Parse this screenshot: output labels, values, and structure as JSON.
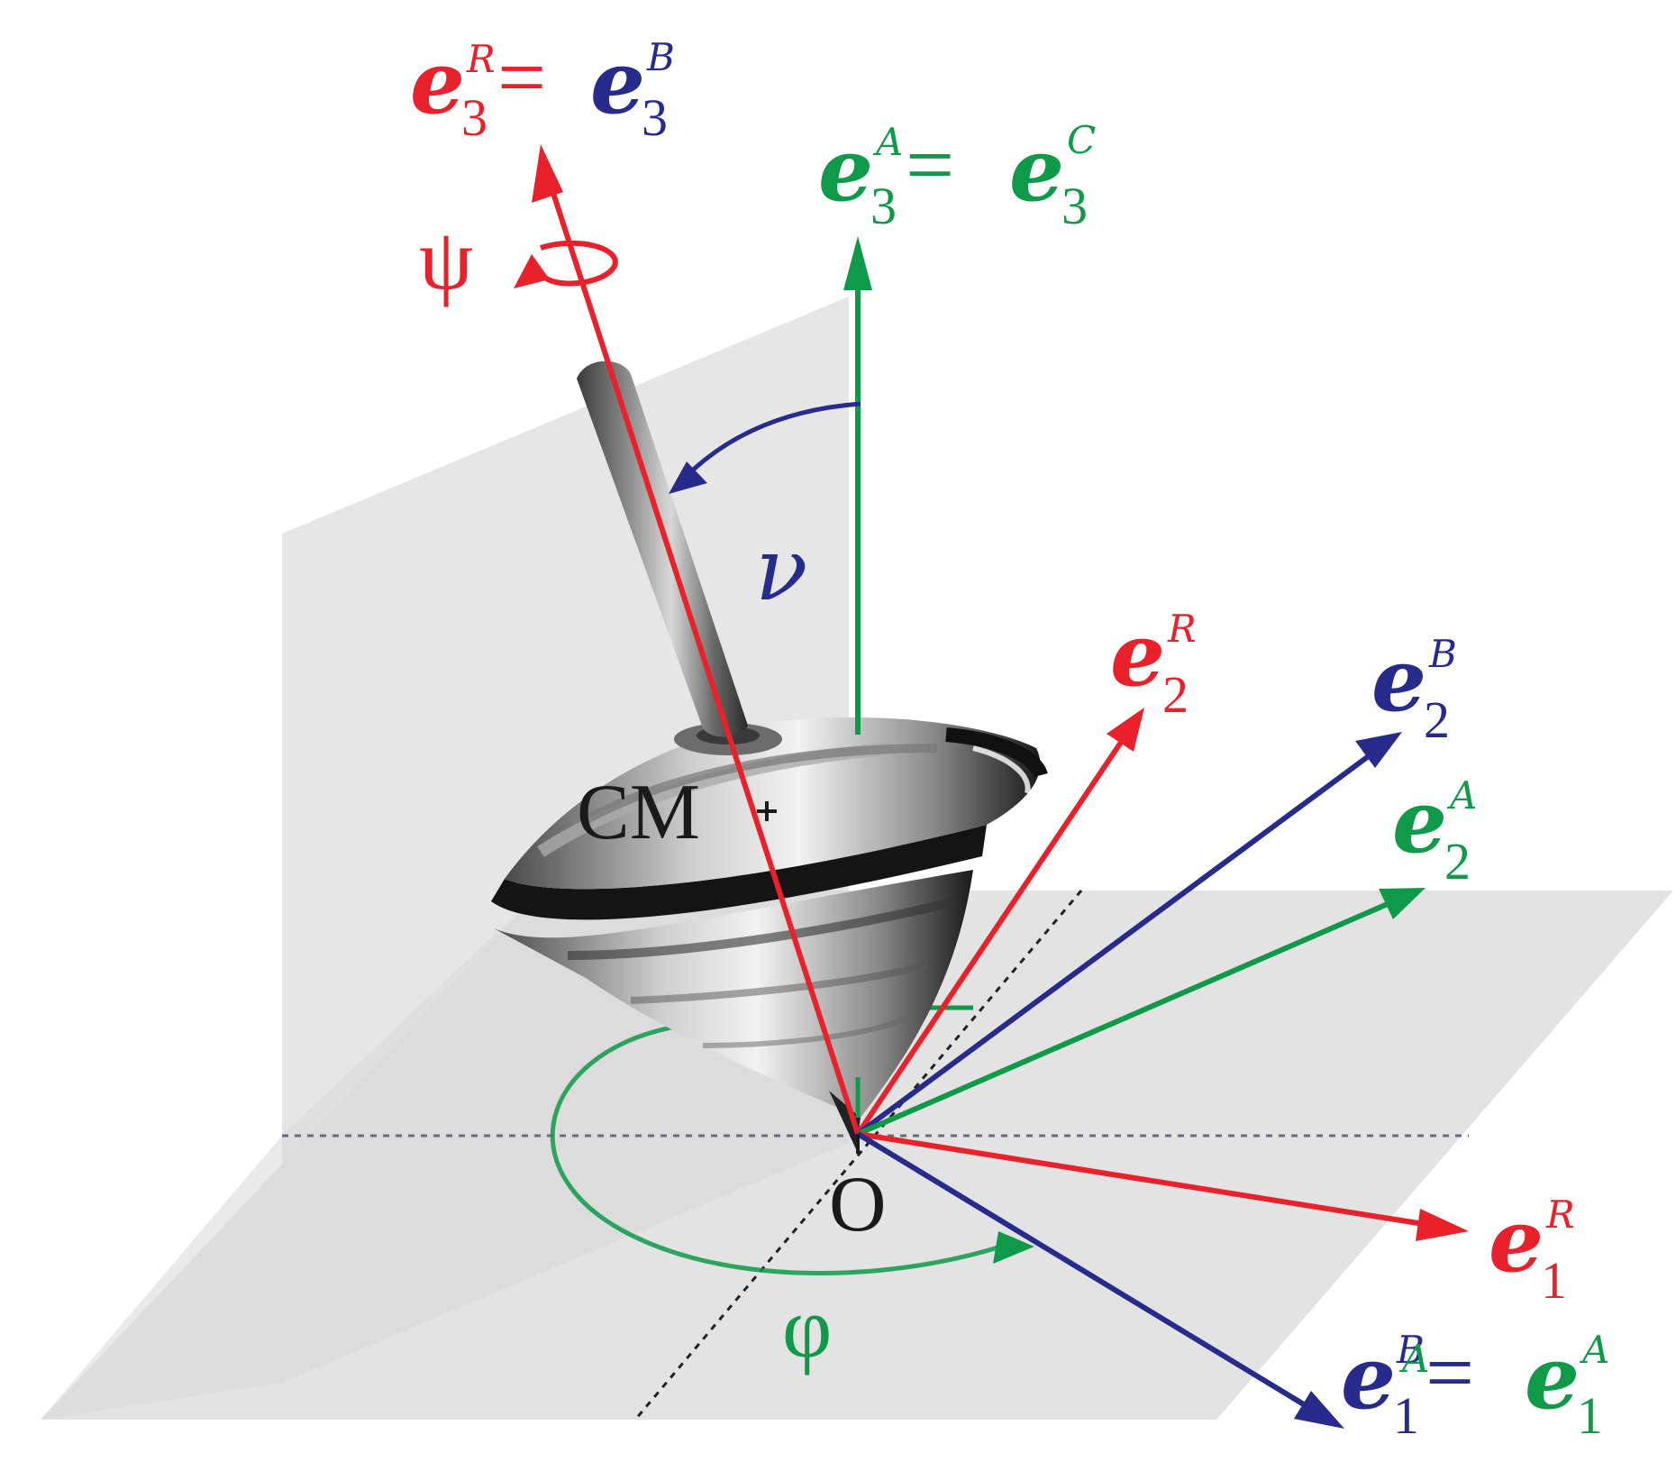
{
  "colors": {
    "red": "#e8212a",
    "blue": "#262b8c",
    "green": "#0e9a48",
    "plane": "#e4e4e4",
    "dotted": "#111111"
  },
  "labels": {
    "e3R_e3B": {
      "symbol": "e",
      "sub": "3",
      "supL": "R",
      "eq": "=",
      "symbol2": "e",
      "sub2": "3",
      "supR": "B"
    },
    "e3A_e3C": {
      "symbol": "e",
      "sub": "3",
      "supL": "A",
      "eq": "=",
      "symbol2": "e",
      "sub2": "3",
      "supR": "C"
    },
    "e2R": {
      "symbol": "e",
      "sub": "2",
      "sup": "R"
    },
    "e2B": {
      "symbol": "e",
      "sub": "2",
      "sup": "B"
    },
    "e2A": {
      "symbol": "e",
      "sub": "2",
      "sup": "A"
    },
    "e1R": {
      "symbol": "e",
      "sub": "1",
      "sup": "R"
    },
    "e1B_e1A": {
      "symbol": "e",
      "sub": "1",
      "supL": "B",
      "supL2": "A",
      "eq": "=",
      "symbol2": "e",
      "sub2": "1",
      "supR": "A"
    },
    "psi": "ψ",
    "nu": "ν",
    "phi": "φ",
    "cm": "CM",
    "origin": "O"
  }
}
